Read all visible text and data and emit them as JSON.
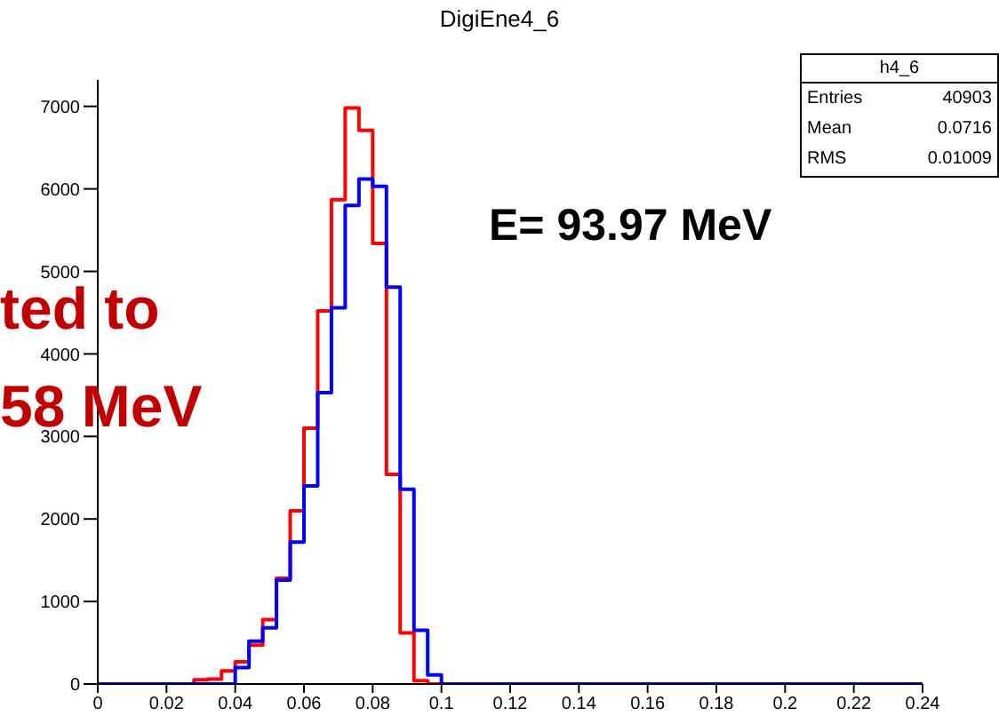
{
  "chart_data": {
    "type": "histogram",
    "title": "DigiEne4_6",
    "bins": [
      0,
      0.004,
      0.008,
      0.012,
      0.016,
      0.02,
      0.024,
      0.028,
      0.032,
      0.036,
      0.04,
      0.044,
      0.048,
      0.052,
      0.056,
      0.06,
      0.064,
      0.068,
      0.072,
      0.076,
      0.08,
      0.084,
      0.088,
      0.092,
      0.096,
      0.1,
      0.104,
      0.108,
      0.112,
      0.116,
      0.12,
      0.124,
      0.128,
      0.132,
      0.136,
      0.14,
      0.144,
      0.148,
      0.152,
      0.156,
      0.16,
      0.164,
      0.168,
      0.172,
      0.176,
      0.18,
      0.184,
      0.188,
      0.192,
      0.196,
      0.2,
      0.204,
      0.208,
      0.212,
      0.216,
      0.22,
      0.224,
      0.228,
      0.232,
      0.236,
      0.24
    ],
    "series": [
      {
        "color": "#ff0000",
        "values": [
          0,
          0,
          0,
          0,
          0,
          0,
          0,
          50,
          60,
          160,
          270,
          470,
          780,
          1280,
          2100,
          3100,
          4520,
          5870,
          6980,
          6710,
          5340,
          2540,
          620,
          40,
          0,
          0,
          0,
          0,
          0,
          0,
          0,
          0,
          0,
          0,
          0,
          0,
          0,
          0,
          0,
          0,
          0,
          0,
          0,
          0,
          0,
          0,
          0,
          0,
          0,
          0,
          0,
          0,
          0,
          0,
          0,
          0,
          0,
          0,
          0,
          0
        ]
      },
      {
        "color": "#0000ff",
        "values": [
          0,
          0,
          0,
          0,
          0,
          0,
          0,
          0,
          0,
          0,
          200,
          520,
          680,
          1260,
          1720,
          2400,
          3530,
          4560,
          5800,
          6120,
          6030,
          4810,
          2360,
          650,
          110,
          0,
          0,
          0,
          0,
          0,
          0,
          0,
          0,
          0,
          0,
          0,
          0,
          0,
          0,
          0,
          0,
          0,
          0,
          0,
          0,
          0,
          0,
          0,
          0,
          0,
          0,
          0,
          0,
          0,
          0,
          0,
          0,
          0,
          0,
          0
        ]
      }
    ],
    "xlim": [
      0,
      0.24
    ],
    "xticks": [
      0,
      0.02,
      0.04,
      0.06,
      0.08,
      0.1,
      0.12,
      0.14,
      0.16,
      0.18,
      0.2,
      0.22,
      0.24
    ],
    "ylim": [
      0,
      7320
    ],
    "yticks": [
      0,
      1000,
      2000,
      3000,
      4000,
      5000,
      6000,
      7000
    ],
    "annotations": [
      "h4_6",
      "Entries",
      "40903",
      "Mean",
      "0.0716",
      "RMS",
      "0.01009",
      "E= 93.97 MeV",
      "ted to",
      "58 MeV"
    ]
  }
}
